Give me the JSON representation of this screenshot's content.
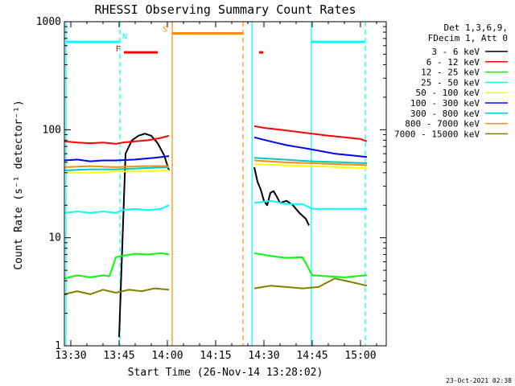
{
  "chart_data": {
    "type": "line",
    "title": "RHESSI Observing Summary Count Rates",
    "xlabel": "Start Time (26-Nov-14 13:28:02)",
    "ylabel": "Count Rate (s⁻¹ detector⁻¹)",
    "ylog": true,
    "xlim_min": [
      1288,
      1388
    ],
    "ylim": [
      1,
      1000
    ],
    "x_ticks": [
      {
        "v": 1290,
        "label": "13:30"
      },
      {
        "v": 1305,
        "label": "13:45"
      },
      {
        "v": 1320,
        "label": "14:00"
      },
      {
        "v": 1335,
        "label": "14:15"
      },
      {
        "v": 1350,
        "label": "14:30"
      },
      {
        "v": 1365,
        "label": "14:45"
      },
      {
        "v": 1380,
        "label": "15:00"
      }
    ],
    "y_ticks": [
      {
        "v": 1,
        "label": "1"
      },
      {
        "v": 10,
        "label": "10"
      },
      {
        "v": 100,
        "label": "100"
      },
      {
        "v": 1000,
        "label": "1000"
      }
    ],
    "legend_header": [
      "Det 1,3,6,9,",
      "FDecim 1, Att 0"
    ],
    "legend_position": "right",
    "timestamp": "23-Oct-2021 02:38",
    "series": [
      {
        "name": "3 - 6 keV",
        "color": "#000000",
        "x": [
          1305,
          1307,
          1309,
          1311,
          1313,
          1315,
          1317,
          1319,
          1320.5,
          1347,
          1348,
          1349,
          1350,
          1351,
          1352,
          1353,
          1354,
          1355,
          1357,
          1359,
          1361,
          1363,
          1364
        ],
        "y": [
          1.2,
          60,
          80,
          88,
          92,
          88,
          75,
          58,
          42,
          45,
          33,
          28,
          22,
          20,
          26,
          27,
          24,
          21,
          22,
          20,
          17,
          15,
          13
        ]
      },
      {
        "name": "6 - 12 keV",
        "color": "#ff0000",
        "x": [
          1288,
          1292,
          1296,
          1300,
          1304,
          1306,
          1310,
          1314,
          1318,
          1320.5,
          1347,
          1350,
          1355,
          1360,
          1365,
          1370,
          1375,
          1380,
          1382
        ],
        "y": [
          78,
          76,
          75,
          76,
          74,
          76,
          78,
          80,
          84,
          88,
          108,
          104,
          100,
          96,
          92,
          88,
          85,
          82,
          78
        ]
      },
      {
        "name": "12 - 25 keV",
        "color": "#00ff00",
        "x": [
          1288,
          1292,
          1296,
          1300,
          1302,
          1304,
          1306,
          1310,
          1314,
          1318,
          1320.5,
          1347,
          1352,
          1357,
          1362,
          1365,
          1370,
          1375,
          1382
        ],
        "y": [
          4.2,
          4.5,
          4.3,
          4.5,
          4.4,
          6.6,
          6.8,
          7.1,
          7.0,
          7.2,
          7.0,
          7.2,
          6.8,
          6.5,
          6.6,
          4.5,
          4.4,
          4.3,
          4.5
        ]
      },
      {
        "name": "25 - 50 keV",
        "color": "#00ffff",
        "x": [
          1288,
          1292,
          1296,
          1300,
          1304,
          1306,
          1310,
          1314,
          1318,
          1320.5,
          1347,
          1352,
          1357,
          1362,
          1365,
          1370,
          1375,
          1382
        ],
        "y": [
          17,
          17.5,
          17,
          17.5,
          17,
          18,
          18.5,
          18,
          18.5,
          20,
          21,
          22,
          20.5,
          20.5,
          18.5,
          18.5,
          18.5,
          18.5
        ]
      },
      {
        "name": "50 - 100 keV",
        "color": "#ffff00",
        "x": [
          1288,
          1296,
          1304,
          1312,
          1320.5,
          1347,
          1356,
          1365,
          1374,
          1382
        ],
        "y": [
          40,
          40,
          41,
          41,
          42,
          48,
          47,
          46,
          45,
          44
        ]
      },
      {
        "name": "100 - 300 keV",
        "color": "#0000ff",
        "x": [
          1288,
          1292,
          1296,
          1300,
          1304,
          1310,
          1316,
          1320.5,
          1347,
          1352,
          1357,
          1362,
          1367,
          1372,
          1377,
          1382
        ],
        "y": [
          52,
          53,
          51,
          52,
          52,
          53,
          55,
          57,
          85,
          78,
          72,
          68,
          64,
          60,
          58,
          56
        ]
      },
      {
        "name": "300 - 800 keV",
        "color": "#00c8c8",
        "x": [
          1288,
          1296,
          1304,
          1312,
          1320.5,
          1347,
          1356,
          1365,
          1374,
          1382
        ],
        "y": [
          42,
          43,
          43,
          44,
          45,
          55,
          53,
          51,
          50,
          49
        ]
      },
      {
        "name": "800 - 7000 keV",
        "color": "#ff8c00",
        "x": [
          1288,
          1296,
          1304,
          1312,
          1320.5,
          1347,
          1356,
          1365,
          1374,
          1382
        ],
        "y": [
          45,
          46,
          45,
          46,
          46,
          52,
          50,
          49,
          48,
          47
        ]
      },
      {
        "name": "7000 - 15000 keV",
        "color": "#808000",
        "x": [
          1288,
          1292,
          1296,
          1300,
          1304,
          1308,
          1312,
          1316,
          1320.5,
          1347,
          1352,
          1357,
          1362,
          1367,
          1372,
          1377,
          1382
        ],
        "y": [
          3.0,
          3.2,
          3.0,
          3.3,
          3.1,
          3.3,
          3.2,
          3.4,
          3.3,
          3.4,
          3.6,
          3.5,
          3.4,
          3.5,
          4.2,
          3.9,
          3.6
        ]
      }
    ],
    "vertical_lines": [
      {
        "x": 1288.5,
        "color": "#00ffff",
        "style": "solid"
      },
      {
        "x": 1305.3,
        "color": "#00ffff",
        "style": "dashed"
      },
      {
        "x": 1321.5,
        "color": "#ff8c00",
        "style": "solid"
      },
      {
        "x": 1343.5,
        "color": "#ff8c00",
        "style": "dashed"
      },
      {
        "x": 1346.3,
        "color": "#00ffff",
        "style": "solid"
      },
      {
        "x": 1364.7,
        "color": "#00ffff",
        "style": "solid"
      },
      {
        "x": 1381.5,
        "color": "#00ffff",
        "style": "dashed"
      }
    ],
    "flag_bars": [
      {
        "x0": 1288.5,
        "x1": 1305.3,
        "y": 650,
        "color": "#00ffff"
      },
      {
        "x0": 1364.7,
        "x1": 1381.5,
        "y": 650,
        "color": "#00ffff"
      },
      {
        "x0": 1321.5,
        "x1": 1343.5,
        "y": 780,
        "color": "#ff8c00"
      },
      {
        "x0": 1306.5,
        "x1": 1317.0,
        "y": 520,
        "color": "#ff0000"
      },
      {
        "x0": 1348.5,
        "x1": 1349.8,
        "y": 520,
        "color": "#ff0000"
      }
    ],
    "flag_labels": [
      {
        "text": "N",
        "x": 1306.8,
        "y": 690,
        "color": "#00ffff"
      },
      {
        "text": "S",
        "x": 1319.3,
        "y": 810,
        "color": "#ff8c00"
      },
      {
        "text": "F",
        "x": 1304.7,
        "y": 530,
        "color": "#ff0000"
      }
    ]
  }
}
